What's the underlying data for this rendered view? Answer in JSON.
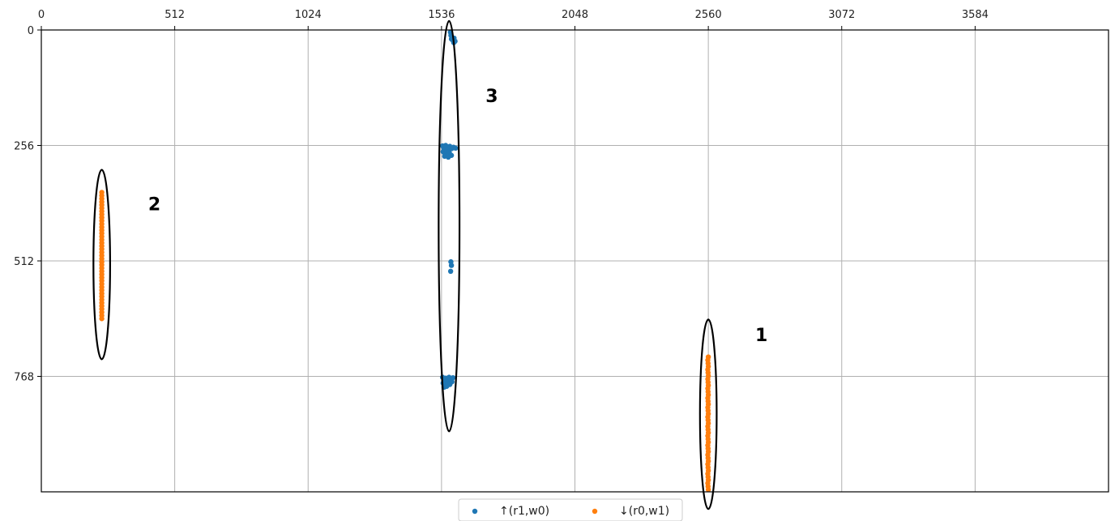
{
  "chart_data": {
    "type": "scatter",
    "title": "",
    "xlabel": "",
    "ylabel": "",
    "xlim": [
      0,
      4096
    ],
    "ylim": [
      1024,
      0
    ],
    "xticks": [
      "0",
      "512",
      "1024",
      "1536",
      "2048",
      "2560",
      "3072",
      "3584"
    ],
    "yticks": [
      "0",
      "256",
      "512",
      "768"
    ],
    "grid": true,
    "x_axis_position": "top",
    "legend_position": "bottom-center",
    "series": [
      {
        "name": "↑(r1,w0)",
        "color": "#1f77b4",
        "points": [
          [
            1570,
            5
          ],
          [
            1572,
            12
          ],
          [
            1574,
            20
          ],
          [
            1578,
            22
          ],
          [
            1584,
            18
          ],
          [
            1588,
            25
          ],
          [
            1583,
            28
          ],
          [
            1540,
            257
          ],
          [
            1545,
            262
          ],
          [
            1552,
            256
          ],
          [
            1560,
            264
          ],
          [
            1568,
            258
          ],
          [
            1575,
            263
          ],
          [
            1582,
            260
          ],
          [
            1590,
            262
          ],
          [
            1542,
            270
          ],
          [
            1550,
            275
          ],
          [
            1558,
            270
          ],
          [
            1566,
            272
          ],
          [
            1574,
            278
          ],
          [
            1548,
            280
          ],
          [
            1562,
            282
          ],
          [
            1572,
            514
          ],
          [
            1574,
            522
          ],
          [
            1571,
            535
          ],
          [
            1540,
            770
          ],
          [
            1545,
            775
          ],
          [
            1552,
            772
          ],
          [
            1558,
            778
          ],
          [
            1565,
            770
          ],
          [
            1572,
            776
          ],
          [
            1580,
            771
          ],
          [
            1542,
            783
          ],
          [
            1550,
            788
          ],
          [
            1560,
            784
          ],
          [
            1568,
            786
          ],
          [
            1576,
            780
          ],
          [
            1546,
            792
          ],
          [
            1556,
            790
          ]
        ]
      },
      {
        "name": "↓(r0,w1)",
        "color": "#ff7f0e",
        "x_values": [
          2558,
          2559,
          2560
        ],
        "x_single": 2558,
        "y_start": 725,
        "y_end": 1020,
        "y_step": 7,
        "x_cluster2": 232,
        "y2_start": 360,
        "y2_end": 645,
        "y2_step": 7
      }
    ],
    "annotations": [
      {
        "text": "1",
        "x": 2740,
        "y": 690
      },
      {
        "text": "2",
        "x": 410,
        "y": 400
      },
      {
        "text": "3",
        "x": 1705,
        "y": 160
      }
    ],
    "ellipses": [
      {
        "cx": 2560,
        "cy": 852,
        "rx": 100,
        "ry": 210
      },
      {
        "cx": 232,
        "cy": 520,
        "rx": 100,
        "ry": 210
      },
      {
        "cx": 1565,
        "cy": 435,
        "rx": 125,
        "ry": 455
      }
    ]
  }
}
